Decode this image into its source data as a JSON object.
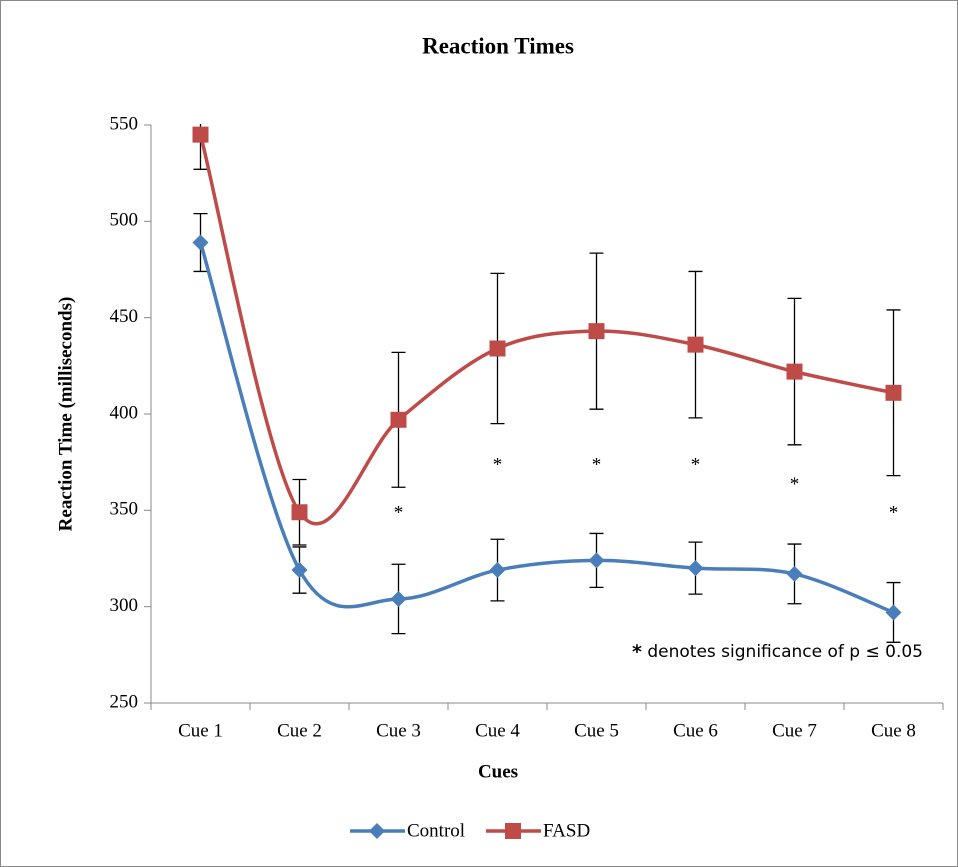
{
  "chart_data": {
    "type": "line",
    "title": "Reaction Times",
    "xlabel": "Cues",
    "ylabel": "Reaction Time (milliseconds)",
    "categories": [
      "Cue 1",
      "Cue 2",
      "Cue 3",
      "Cue 4",
      "Cue 5",
      "Cue 6",
      "Cue 7",
      "Cue 8"
    ],
    "series": [
      {
        "name": "Control",
        "color": "#4a7ebb",
        "marker": "diamond",
        "values": [
          489,
          319,
          304,
          319,
          324,
          320,
          317,
          297
        ],
        "errors": [
          15,
          12,
          18,
          16,
          14,
          13.5,
          15.5,
          15.5
        ]
      },
      {
        "name": "FASD",
        "color": "#be4b48",
        "marker": "square",
        "values": [
          545,
          349,
          397,
          434,
          443,
          436,
          422,
          411
        ],
        "errors": [
          18,
          17,
          35,
          39,
          40.5,
          38,
          38,
          43
        ]
      }
    ],
    "ylim": [
      250,
      550
    ],
    "yticks": [
      250,
      300,
      350,
      400,
      450,
      500,
      550
    ],
    "smooth": true,
    "legend": "bottom",
    "annotations": [
      {
        "text": "*",
        "x": "Cue 3",
        "y": 350
      },
      {
        "text": "*",
        "x": "Cue 4",
        "y": 375
      },
      {
        "text": "*",
        "x": "Cue 5",
        "y": 375
      },
      {
        "text": "*",
        "x": "Cue 6",
        "y": 375
      },
      {
        "text": "*",
        "x": "Cue 7",
        "y": 365
      },
      {
        "text": "*",
        "x": "Cue 8",
        "y": 350
      }
    ],
    "note": {
      "marker": "*",
      "text": "denotes significance of  p ≤ 0.05"
    }
  }
}
